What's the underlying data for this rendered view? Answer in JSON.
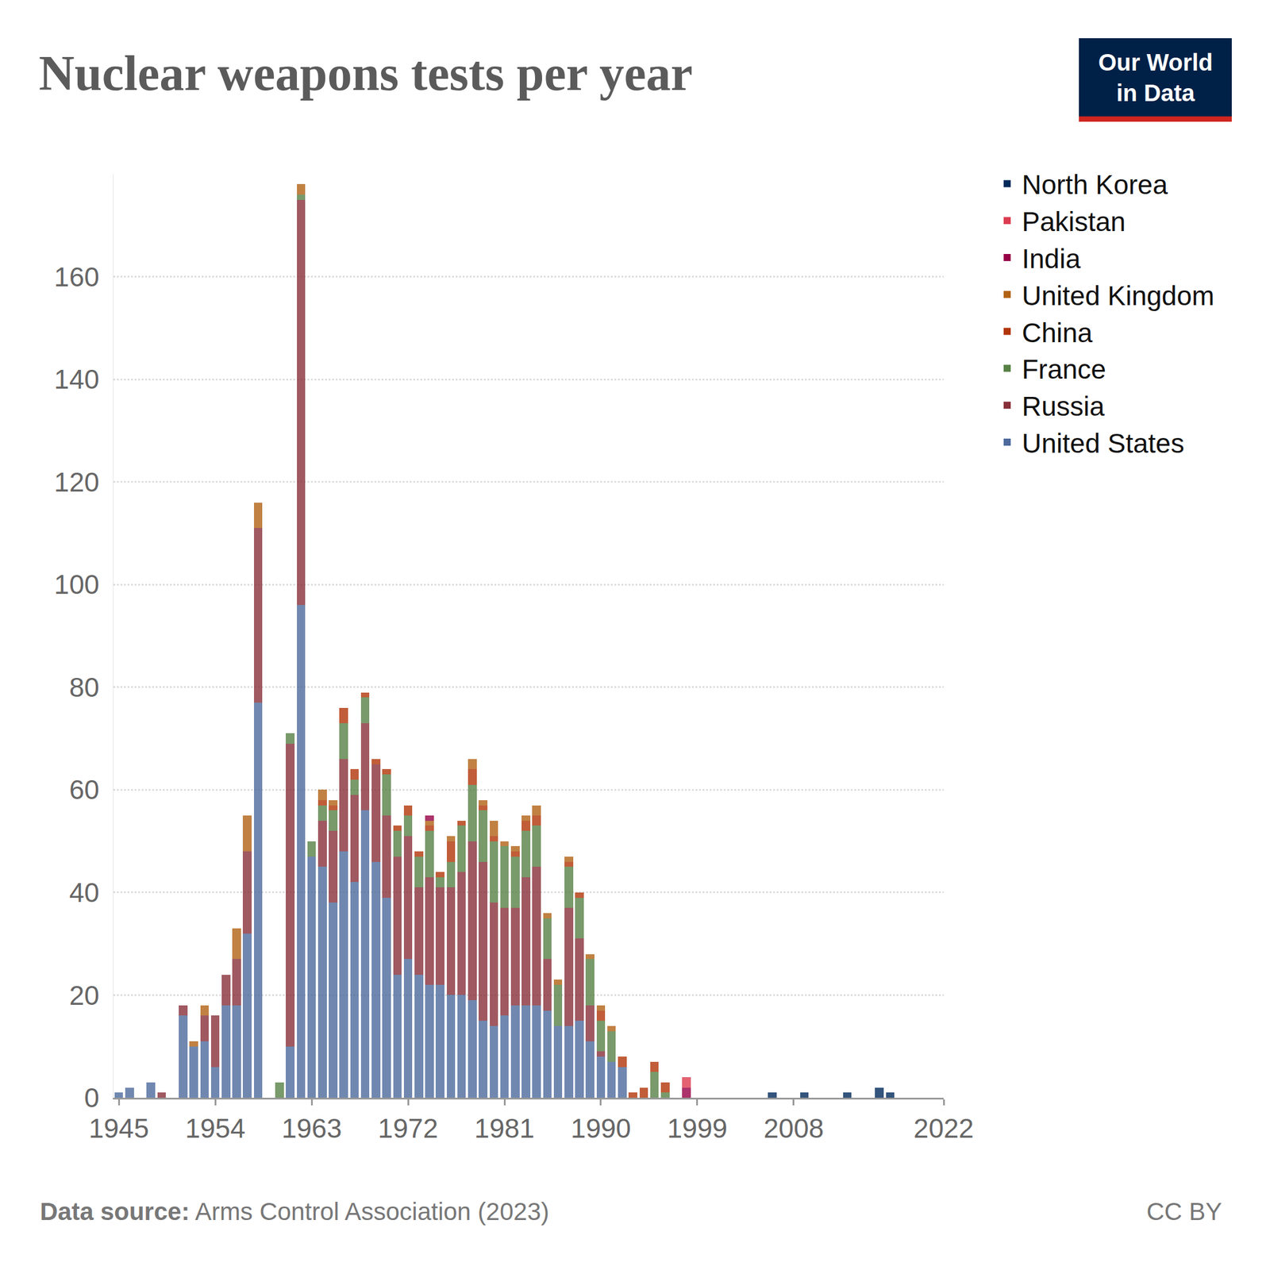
{
  "chart_data": {
    "type": "bar",
    "title": "Nuclear weapons tests per year",
    "source_label": "Data source:",
    "source": "Arms Control Association (2023)",
    "license": "CC BY",
    "logo": [
      "Our World",
      "in Data"
    ],
    "stacked": true,
    "grid": true,
    "legend": "right",
    "x": [
      1945,
      1946,
      1947,
      1948,
      1949,
      1950,
      1951,
      1952,
      1953,
      1954,
      1955,
      1956,
      1957,
      1958,
      1959,
      1960,
      1961,
      1962,
      1963,
      1964,
      1965,
      1966,
      1967,
      1968,
      1969,
      1970,
      1971,
      1972,
      1973,
      1974,
      1975,
      1976,
      1977,
      1978,
      1979,
      1980,
      1981,
      1982,
      1983,
      1984,
      1985,
      1986,
      1987,
      1988,
      1989,
      1990,
      1991,
      1992,
      1993,
      1994,
      1995,
      1996,
      1997,
      1998,
      1999,
      2000,
      2001,
      2002,
      2003,
      2004,
      2005,
      2006,
      2007,
      2008,
      2009,
      2010,
      2011,
      2012,
      2013,
      2014,
      2015,
      2016,
      2017,
      2018,
      2019,
      2020,
      2021,
      2022
    ],
    "xlim": [
      1944.5,
      2022
    ],
    "xticks": [
      1945,
      1954,
      1963,
      1972,
      1981,
      1990,
      1999,
      2008,
      2022
    ],
    "ylim": [
      0,
      180
    ],
    "yticks": [
      0,
      20,
      40,
      60,
      80,
      100,
      120,
      140,
      160
    ],
    "series": [
      {
        "name": "United States",
        "color": "#4c6a9c",
        "values": [
          1,
          2,
          0,
          3,
          0,
          0,
          16,
          10,
          11,
          6,
          18,
          18,
          32,
          77,
          0,
          0,
          10,
          96,
          47,
          45,
          38,
          48,
          42,
          56,
          46,
          39,
          24,
          27,
          24,
          22,
          22,
          20,
          20,
          19,
          15,
          14,
          16,
          18,
          18,
          18,
          17,
          14,
          14,
          15,
          11,
          8,
          7,
          6,
          0,
          0,
          0,
          0,
          0,
          0,
          0,
          0,
          0,
          0,
          0,
          0,
          0,
          0,
          0,
          0,
          0,
          0,
          0,
          0,
          0,
          0,
          0,
          0,
          0,
          0,
          0,
          0,
          0,
          0
        ]
      },
      {
        "name": "Russia",
        "color": "#883039",
        "values": [
          0,
          0,
          0,
          0,
          1,
          0,
          2,
          0,
          5,
          10,
          6,
          9,
          16,
          34,
          0,
          0,
          59,
          79,
          0,
          9,
          14,
          18,
          17,
          17,
          19,
          16,
          23,
          24,
          17,
          21,
          19,
          21,
          24,
          31,
          31,
          24,
          21,
          19,
          25,
          27,
          10,
          0,
          23,
          16,
          7,
          1,
          0,
          0,
          0,
          0,
          0,
          0,
          0,
          0,
          0,
          0,
          0,
          0,
          0,
          0,
          0,
          0,
          0,
          0,
          0,
          0,
          0,
          0,
          0,
          0,
          0,
          0,
          0,
          0,
          0,
          0,
          0,
          0
        ]
      },
      {
        "name": "France",
        "color": "#578145",
        "values": [
          0,
          0,
          0,
          0,
          0,
          0,
          0,
          0,
          0,
          0,
          0,
          0,
          0,
          0,
          0,
          3,
          2,
          1,
          3,
          3,
          4,
          7,
          3,
          5,
          0,
          8,
          5,
          4,
          6,
          9,
          2,
          5,
          9,
          11,
          10,
          12,
          12,
          10,
          9,
          8,
          8,
          8,
          8,
          8,
          9,
          6,
          6,
          0,
          0,
          0,
          5,
          1,
          0,
          0,
          0,
          0,
          0,
          0,
          0,
          0,
          0,
          0,
          0,
          0,
          0,
          0,
          0,
          0,
          0,
          0,
          0,
          0,
          0,
          0,
          0,
          0,
          0,
          0
        ]
      },
      {
        "name": "China",
        "color": "#b13507",
        "values": [
          0,
          0,
          0,
          0,
          0,
          0,
          0,
          0,
          0,
          0,
          0,
          0,
          0,
          0,
          0,
          0,
          0,
          0,
          0,
          1,
          1,
          3,
          2,
          1,
          1,
          1,
          1,
          2,
          1,
          1,
          1,
          4,
          1,
          3,
          1,
          1,
          0,
          1,
          2,
          2,
          0,
          0,
          1,
          1,
          0,
          2,
          0,
          2,
          1,
          2,
          2,
          2,
          0,
          0,
          0,
          0,
          0,
          0,
          0,
          0,
          0,
          0,
          0,
          0,
          0,
          0,
          0,
          0,
          0,
          0,
          0,
          0,
          0,
          0,
          0,
          0,
          0,
          0
        ]
      },
      {
        "name": "United Kingdom",
        "color": "#b16214",
        "values": [
          0,
          0,
          0,
          0,
          0,
          0,
          0,
          1,
          2,
          0,
          0,
          6,
          7,
          5,
          0,
          0,
          0,
          2,
          0,
          2,
          1,
          0,
          0,
          0,
          0,
          0,
          0,
          0,
          0,
          1,
          0,
          1,
          0,
          2,
          1,
          3,
          1,
          1,
          1,
          2,
          1,
          1,
          1,
          0,
          1,
          1,
          1,
          0,
          0,
          0,
          0,
          0,
          0,
          0,
          0,
          0,
          0,
          0,
          0,
          0,
          0,
          0,
          0,
          0,
          0,
          0,
          0,
          0,
          0,
          0,
          0,
          0,
          0,
          0,
          0,
          0,
          0,
          0
        ]
      },
      {
        "name": "India",
        "color": "#970046",
        "values": [
          0,
          0,
          0,
          0,
          0,
          0,
          0,
          0,
          0,
          0,
          0,
          0,
          0,
          0,
          0,
          0,
          0,
          0,
          0,
          0,
          0,
          0,
          0,
          0,
          0,
          0,
          0,
          0,
          0,
          1,
          0,
          0,
          0,
          0,
          0,
          0,
          0,
          0,
          0,
          0,
          0,
          0,
          0,
          0,
          0,
          0,
          0,
          0,
          0,
          0,
          0,
          0,
          0,
          2,
          0,
          0,
          0,
          0,
          0,
          0,
          0,
          0,
          0,
          0,
          0,
          0,
          0,
          0,
          0,
          0,
          0,
          0,
          0,
          0,
          0,
          0,
          0,
          0
        ]
      },
      {
        "name": "Pakistan",
        "color": "#dc3c50",
        "values": [
          0,
          0,
          0,
          0,
          0,
          0,
          0,
          0,
          0,
          0,
          0,
          0,
          0,
          0,
          0,
          0,
          0,
          0,
          0,
          0,
          0,
          0,
          0,
          0,
          0,
          0,
          0,
          0,
          0,
          0,
          0,
          0,
          0,
          0,
          0,
          0,
          0,
          0,
          0,
          0,
          0,
          0,
          0,
          0,
          0,
          0,
          0,
          0,
          0,
          0,
          0,
          0,
          0,
          2,
          0,
          0,
          0,
          0,
          0,
          0,
          0,
          0,
          0,
          0,
          0,
          0,
          0,
          0,
          0,
          0,
          0,
          0,
          0,
          0,
          0,
          0,
          0,
          0
        ]
      },
      {
        "name": "North Korea",
        "color": "#00295b",
        "values": [
          0,
          0,
          0,
          0,
          0,
          0,
          0,
          0,
          0,
          0,
          0,
          0,
          0,
          0,
          0,
          0,
          0,
          0,
          0,
          0,
          0,
          0,
          0,
          0,
          0,
          0,
          0,
          0,
          0,
          0,
          0,
          0,
          0,
          0,
          0,
          0,
          0,
          0,
          0,
          0,
          0,
          0,
          0,
          0,
          0,
          0,
          0,
          0,
          0,
          0,
          0,
          0,
          0,
          0,
          0,
          0,
          0,
          0,
          0,
          0,
          0,
          1,
          0,
          0,
          1,
          0,
          0,
          0,
          1,
          0,
          0,
          2,
          1,
          0,
          0,
          0,
          0,
          0
        ]
      }
    ]
  }
}
